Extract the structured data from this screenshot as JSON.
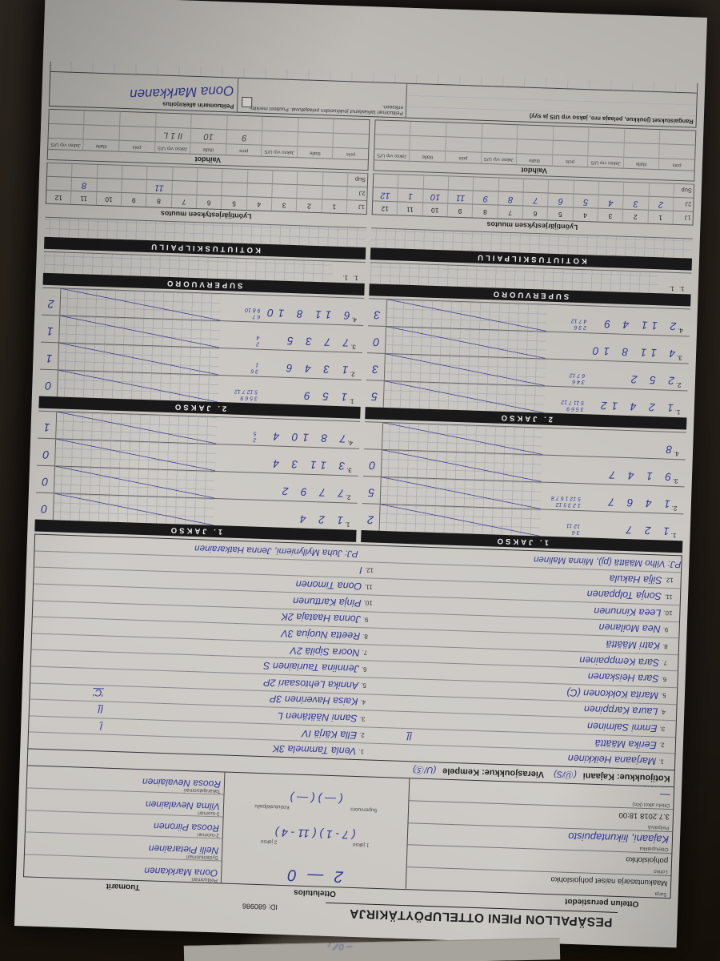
{
  "photo_colors": {
    "background": "#241e18",
    "paper": "#cbc8c3",
    "ink_blue": "#313893",
    "bar_black": "#191919"
  },
  "title": {
    "text": "PESÄPALLON PIENI OTTELUPÖYTÄKIRJA",
    "form_id": "ID: 680986",
    "col_basics": "Ottelun perustiedot",
    "col_result": "Ottelutulos",
    "col_referees": "Tuomarit"
  },
  "perustiedot": {
    "rows": [
      {
        "label": "Sarja",
        "label2": "",
        "value": "Maakuntasarja naiset pohjoislohko",
        "hw": ""
      },
      {
        "label": "Lohko",
        "label2": "",
        "value": "pohjoislohko",
        "hw": ""
      },
      {
        "label": "Ottelupaikka",
        "label2": "",
        "value": "Kajaani, liikuntapuisto",
        "hw": "hw"
      },
      {
        "label": "Pelipäivä",
        "label2": "",
        "value": "3.7.2018 18:00",
        "hw": ""
      },
      {
        "label": "Ottelu alkoi (klo)",
        "label2": "päättyi (klo)",
        "value": "—",
        "hw": "hw"
      }
    ]
  },
  "tulos": {
    "score": "2 — 0",
    "jakso_labels": [
      "1 jakso",
      "2 jakso"
    ],
    "jakso_scores": "( 7 - 1 )  ( 11 - 4 )",
    "extra_labels": [
      "Supervuoro",
      "Kotiutuskilpailu"
    ],
    "extra_scores": "(  —  )  (  —  )"
  },
  "tuomarit": [
    {
      "label": "Pelituomari",
      "name": "Oona Markkanen"
    },
    {
      "label": "Syöttötuomari",
      "name": "Nelli Pietarainen"
    },
    {
      "label": "2-tuomari",
      "name": "Roosa Piironen"
    },
    {
      "label": "3-tuomari",
      "name": "Vilma Nevalainen"
    },
    {
      "label": "Takarajatuomari",
      "name": "Roosa Nevalainen"
    }
  ],
  "teams": {
    "home_label": "Kotijoukkue: Kajaani",
    "home_mark": "(Ⓤ/S)",
    "away_label": "Vierasjoukkue: Kempele",
    "away_mark": "(U/Ⓢ)"
  },
  "roster": {
    "rows": [
      {
        "no": "1.",
        "h": "Marjaana Heikkinen",
        "hm": "",
        "a": "Venla Tammela  3K",
        "am": ""
      },
      {
        "no": "2.",
        "h": "Eerika Määttä",
        "hm": "II",
        "a": "Ella Kärjä  IV",
        "am": "I"
      },
      {
        "no": "3.",
        "h": "Emmi Salminen",
        "hm": "",
        "a": "Sanni Näätänen  L",
        "am": "II"
      },
      {
        "no": "4.",
        "h": "Laura Karppinen",
        "hm": "",
        "a": "Kaisa Haverinen  3P",
        "am": "'C'"
      },
      {
        "no": "5.",
        "h": "Marita Kokkonen (C)",
        "hm": "",
        "a": "Annika Lehtosaari  2P",
        "am": ""
      },
      {
        "no": "6.",
        "h": "Sara Heiskanen",
        "hm": "",
        "a": "Jenniina Tauriainen  S",
        "am": ""
      },
      {
        "no": "7.",
        "h": "Sara Kemppainen",
        "hm": "",
        "a": "Noora Sipilä  2V",
        "am": ""
      },
      {
        "no": "8.",
        "h": "Katri Määttä",
        "hm": "",
        "a": "Reetta Nuojua  3V",
        "am": ""
      },
      {
        "no": "9.",
        "h": "Nea Moilanen",
        "hm": "",
        "a": "Jonna Haataja  2K",
        "am": ""
      },
      {
        "no": "10.",
        "h": "Leea Kinnunen",
        "hm": "",
        "a": "Pinja Karttunen",
        "am": ""
      },
      {
        "no": "11.",
        "h": "Sonja Tolppanen",
        "hm": "",
        "a": "Oona Timonen",
        "am": ""
      },
      {
        "no": "12.",
        "h": "Silja Hakula",
        "hm": "",
        "a": "I",
        "am": ""
      }
    ],
    "pj_home": "PJ:  Vilho Määttä (pj), Minna Malinen",
    "pj_away": "PJ:  Juha Myllyniemi, Jenna Hatkarainen"
  },
  "jakso1": {
    "header": "1. JAKSO",
    "home": [
      {
        "n": "1.",
        "v": "1 2 7",
        "s1": "3 6",
        "s2": "12 11",
        "t": "2"
      },
      {
        "n": "2.",
        "v": "1 4 6 7",
        "s1": "1 2 3 5 12",
        "s2": "5 12 1 6 7 8",
        "t": "5"
      },
      {
        "n": "3.",
        "v": "9 1 4 7",
        "s1": "",
        "s2": "",
        "t": "0"
      },
      {
        "n": "4.",
        "v": "8",
        "s1": "",
        "s2": "",
        "t": ""
      }
    ],
    "away": [
      {
        "n": "1.",
        "v": "1 2 4",
        "s1": "",
        "s2": "",
        "t": "0"
      },
      {
        "n": "2.",
        "v": "7 7 9 2",
        "s1": "",
        "s2": "",
        "t": "0"
      },
      {
        "n": "3.",
        "v": "3 11 3 4",
        "s1": "",
        "s2": "",
        "t": "0"
      },
      {
        "n": "4.",
        "v": "7 8 10 4",
        "s1": "2",
        "s2": "5",
        "t": "1"
      }
    ]
  },
  "jakso2": {
    "header": "2. JAKSO",
    "home": [
      {
        "n": "1.",
        "v": "1 2 4 12",
        "s1": "3 5 6 9",
        "s2": "5 11 7 12",
        "t": "5"
      },
      {
        "n": "2.",
        "v": "2 5 2",
        "s1": "3 4 6",
        "s2": "6 7 12",
        "t": "3"
      },
      {
        "n": "3.",
        "v": "4 11 8 10",
        "s1": "",
        "s2": "",
        "t": "0"
      },
      {
        "n": "4.",
        "v": "2 11 4 9",
        "s1": "2 3 6",
        "s2": "4 7 12",
        "t": "3"
      }
    ],
    "away": [
      {
        "n": "1.",
        "v": "1 5 9",
        "s1": "3 5 6 9",
        "s2": "5 12 7 12",
        "t": "0"
      },
      {
        "n": "2.",
        "v": "1 3 4 6",
        "s1": "3 6",
        "s2": "1",
        "t": "1"
      },
      {
        "n": "3.",
        "v": "7 7 3 5",
        "s1": "2",
        "s2": "4",
        "t": "1"
      },
      {
        "n": "4.",
        "v": "6 11 8 10",
        "s1": "6 7",
        "s2": "9 8 10",
        "t": "2"
      }
    ]
  },
  "supervuoro": {
    "header": "SUPERVUORO",
    "row_label": "1.",
    "row_label2": "1."
  },
  "kotiutus": {
    "header": "KOTIUTUSKILPAILU"
  },
  "lyonti": {
    "title": "Lyöntijärjestyksen muutos",
    "lab_1j": "1J",
    "lab_2j": "2J",
    "lab_sup": "Sup",
    "printed": [
      "1",
      "2",
      "3",
      "4",
      "5",
      "6",
      "7",
      "8",
      "9",
      "10",
      "11",
      "12"
    ],
    "home_2j": [
      "2",
      "3",
      "4",
      "5",
      "6",
      "7",
      "8",
      "9",
      "11",
      "10",
      "1",
      "12"
    ],
    "away_2j": [
      "",
      "",
      "",
      "",
      "",
      "",
      "",
      "11",
      "",
      "",
      "8",
      ""
    ],
    "sup_row": [
      "",
      "",
      "",
      "",
      "",
      "",
      "",
      "",
      "",
      "",
      "",
      ""
    ]
  },
  "vaihdot": {
    "title": "Vaihdot",
    "col_labels": [
      "pois",
      "tilalle",
      "Jakso vrp U/S",
      "pois",
      "tilalle",
      "Jakso vrp U/S",
      "pois",
      "tilalle",
      "Jakso vrp U/S"
    ],
    "home_vals": [
      "",
      "",
      "",
      "",
      "",
      "",
      "",
      "",
      ""
    ],
    "away_vals": [
      "",
      "",
      "",
      "9",
      "10",
      "II 1 L",
      "",
      "",
      ""
    ],
    "home_vals2": [
      "",
      "",
      "",
      "",
      "",
      "",
      "",
      "",
      ""
    ],
    "away_vals2": [
      "",
      "",
      "",
      "",
      "",
      "",
      "",
      "",
      ""
    ]
  },
  "rangaistukset": {
    "label": "Rangaistukset (joukkue, pelaaja nro, jakso vrp U/S ja syy)",
    "check_text": "Pelituomari tarkastanut joukkueiden pelaajaluvat. Puutteet merkitty erikseen.",
    "sign_label": "Pelituomarin allekirjoitus",
    "signature": "Oona Markkanen"
  }
}
